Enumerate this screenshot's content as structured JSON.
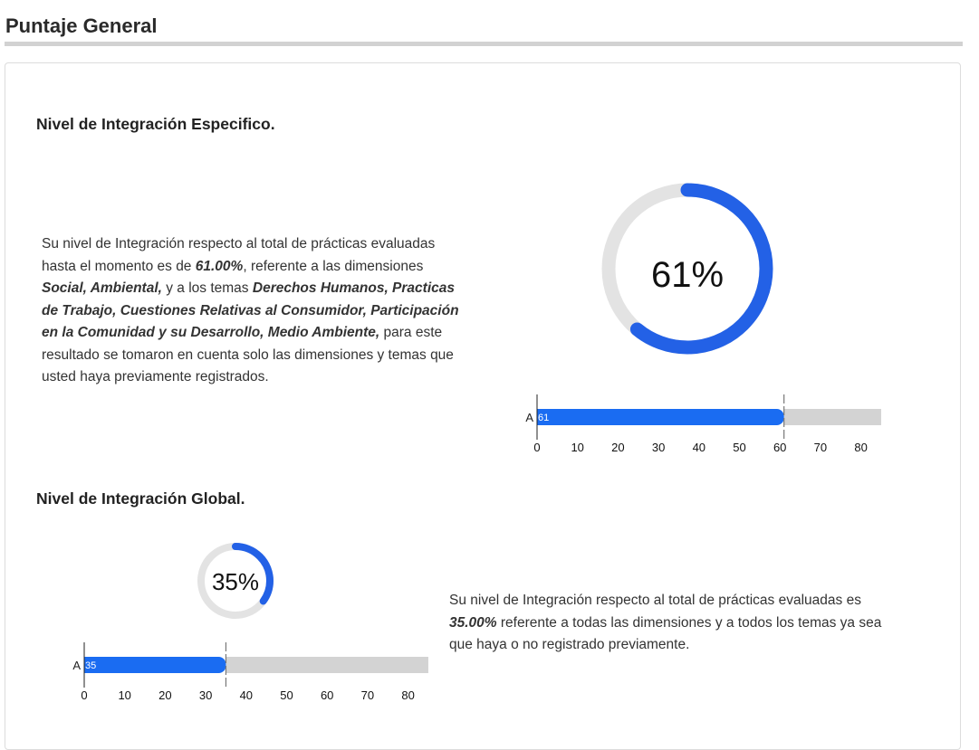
{
  "page_title": "Puntaje General",
  "specific": {
    "heading": "Nivel de Integración Especifico.",
    "text": {
      "t1": "Su nivel de Integración respecto al total de prácticas evaluadas hasta el momento es de ",
      "b1": "61.00%",
      "t2": ", referente a las dimensiones ",
      "b2": "Social, Ambiental,",
      "t3": " y a los temas ",
      "b3": "Derechos Humanos, Practicas de Trabajo, Cuestiones Relativas al Consumidor, Participación en la Comunidad y su Desarrollo, Medio Ambiente,",
      "t4": " para este resultado se tomaron en cuenta solo las dimensiones y temas que usted haya previamente registrados."
    },
    "gauge_label": "61%",
    "gauge_value": 0.61,
    "bar": {
      "category": "A",
      "value": 61,
      "value_label": "61",
      "max": 85,
      "ticks": [
        "0",
        "10",
        "20",
        "30",
        "40",
        "50",
        "60",
        "70",
        "80"
      ]
    }
  },
  "global": {
    "heading": "Nivel de Integración Global.",
    "text": {
      "t1": "Su nivel de Integración respecto al total de prácticas evaluadas es ",
      "b1": "35.00%",
      "t2": " referente a todas las dimensiones y a todos los temas ya sea que haya o no registrado previamente."
    },
    "gauge_label": "35%",
    "gauge_value": 0.35,
    "bar": {
      "category": "A",
      "value": 35,
      "value_label": "35",
      "max": 85,
      "ticks": [
        "0",
        "10",
        "20",
        "30",
        "40",
        "50",
        "60",
        "70",
        "80"
      ]
    }
  },
  "colors": {
    "accent": "#2361e6",
    "bar": "#1a6cf2",
    "track": "#e3e3e3",
    "bar_track": "#d3d3d3"
  }
}
